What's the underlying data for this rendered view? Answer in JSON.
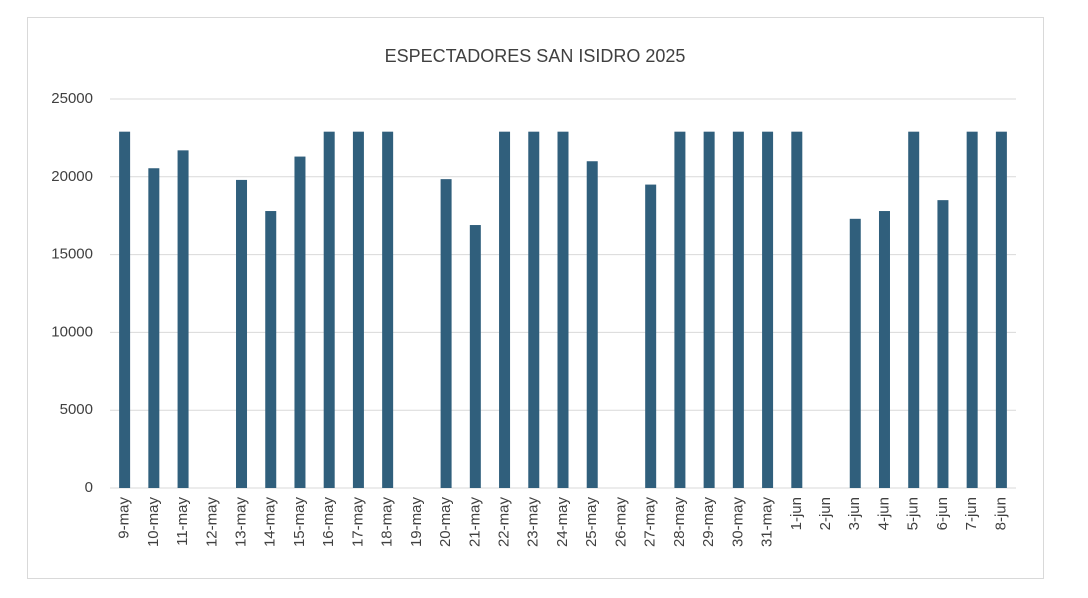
{
  "chart_data": {
    "type": "bar",
    "title": "ESPECTADORES SAN ISIDRO 2025",
    "categories": [
      "9-may",
      "10-may",
      "11-may",
      "12-may",
      "13-may",
      "14-may",
      "15-may",
      "16-may",
      "17-may",
      "18-may",
      "19-may",
      "20-may",
      "21-may",
      "22-may",
      "23-may",
      "24-may",
      "25-may",
      "26-may",
      "27-may",
      "28-may",
      "29-may",
      "30-may",
      "31-may",
      "1-jun",
      "2-jun",
      "3-jun",
      "4-jun",
      "5-jun",
      "6-jun",
      "7-jun",
      "8-jun"
    ],
    "values": [
      22900,
      20550,
      21700,
      null,
      19800,
      17800,
      21300,
      22900,
      22900,
      22900,
      null,
      19850,
      16900,
      22900,
      22900,
      22900,
      21000,
      null,
      19500,
      22900,
      22900,
      22900,
      22900,
      22900,
      null,
      17300,
      17800,
      22900,
      18500,
      22900,
      22900
    ],
    "color": "#305f7c",
    "ylim": [
      0,
      25000
    ],
    "yticks": [
      0,
      5000,
      10000,
      15000,
      20000,
      25000
    ],
    "grid": true
  }
}
